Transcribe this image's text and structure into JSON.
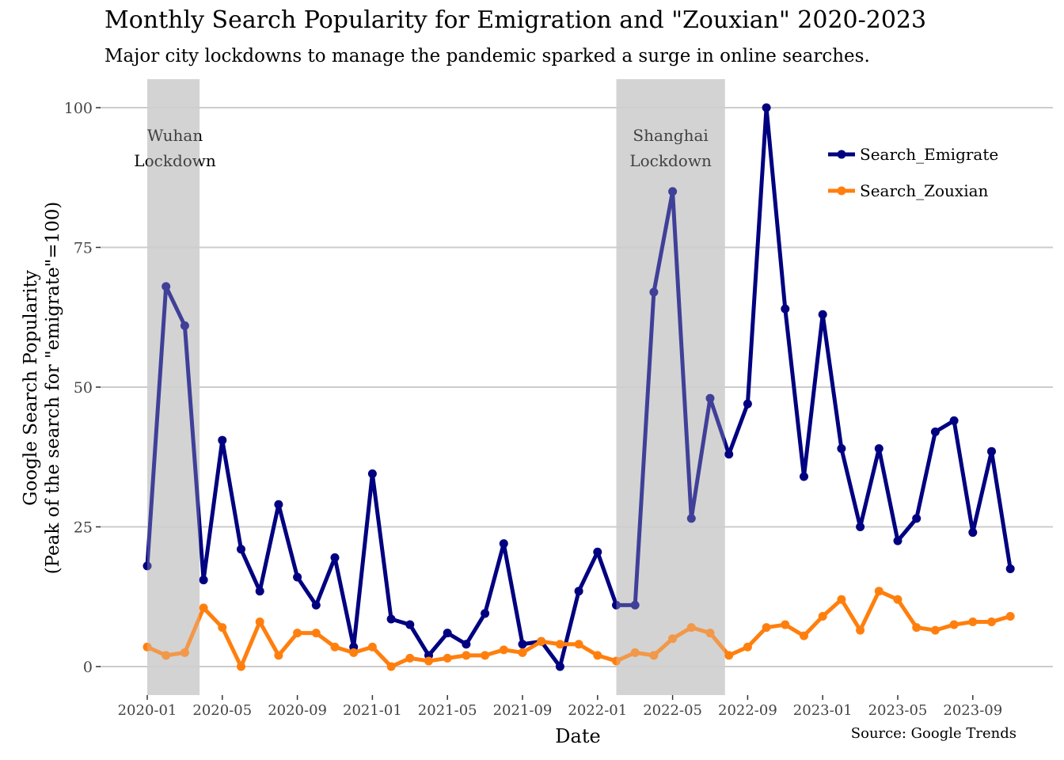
{
  "chart_data": {
    "type": "line",
    "title": "Monthly Search Popularity for Emigration and \"Zouxian\" 2020-2023",
    "subtitle": "Major city lockdowns to manage the pandemic sparked a surge in online searches.",
    "xlabel": "Date",
    "ylabel_line1": "Google Search Popularity",
    "ylabel_line2": "(Peak of the search for \"emigrate\"=100)",
    "source": "Source: Google Trends",
    "x_start": "2020-01",
    "x_ticks": [
      "2020-01",
      "2020-05",
      "2020-09",
      "2021-01",
      "2021-05",
      "2021-09",
      "2022-01",
      "2022-05",
      "2022-09",
      "2023-01",
      "2023-05",
      "2023-09"
    ],
    "y_ticks": [
      0,
      25,
      50,
      75,
      100
    ],
    "ylim": [
      -5,
      105
    ],
    "grid": "horizontal",
    "legend_position": "top-right",
    "shaded_regions": [
      {
        "start": "2020-01",
        "end": "2020-04",
        "label_line1": "Wuhan",
        "label_line2": "Lockdown"
      },
      {
        "start": "2022-02",
        "end": "2022-08",
        "label_line1": "Shanghai",
        "label_line2": "Lockdown"
      }
    ],
    "series": [
      {
        "name": "Search_Emigrate",
        "color": "#000080",
        "values": [
          18,
          68,
          61,
          15.5,
          40.5,
          21,
          13.5,
          29,
          16,
          11,
          19.5,
          3.5,
          34.5,
          8.5,
          7.5,
          2,
          6,
          4,
          9.5,
          22,
          4,
          4.5,
          0,
          13.5,
          20.5,
          11,
          11,
          67,
          85,
          26.5,
          48,
          38,
          47,
          100,
          64,
          34,
          63,
          39,
          25,
          39,
          22.5,
          26.5,
          42,
          44,
          24,
          38.5,
          17.5
        ]
      },
      {
        "name": "Search_Zouxian",
        "color": "#FF7F0E",
        "values": [
          3.5,
          2,
          2.5,
          10.5,
          7,
          0,
          8,
          2,
          6,
          6,
          3.5,
          2.5,
          3.5,
          0,
          1.5,
          1,
          1.5,
          2,
          2,
          3,
          2.5,
          4.5,
          4,
          4,
          2,
          1,
          2.5,
          2,
          5,
          7,
          6,
          2,
          3.5,
          7,
          7.5,
          5.5,
          9,
          12,
          6.5,
          13.5,
          12,
          7,
          6.5,
          7.5,
          8,
          8,
          9
        ]
      }
    ]
  }
}
